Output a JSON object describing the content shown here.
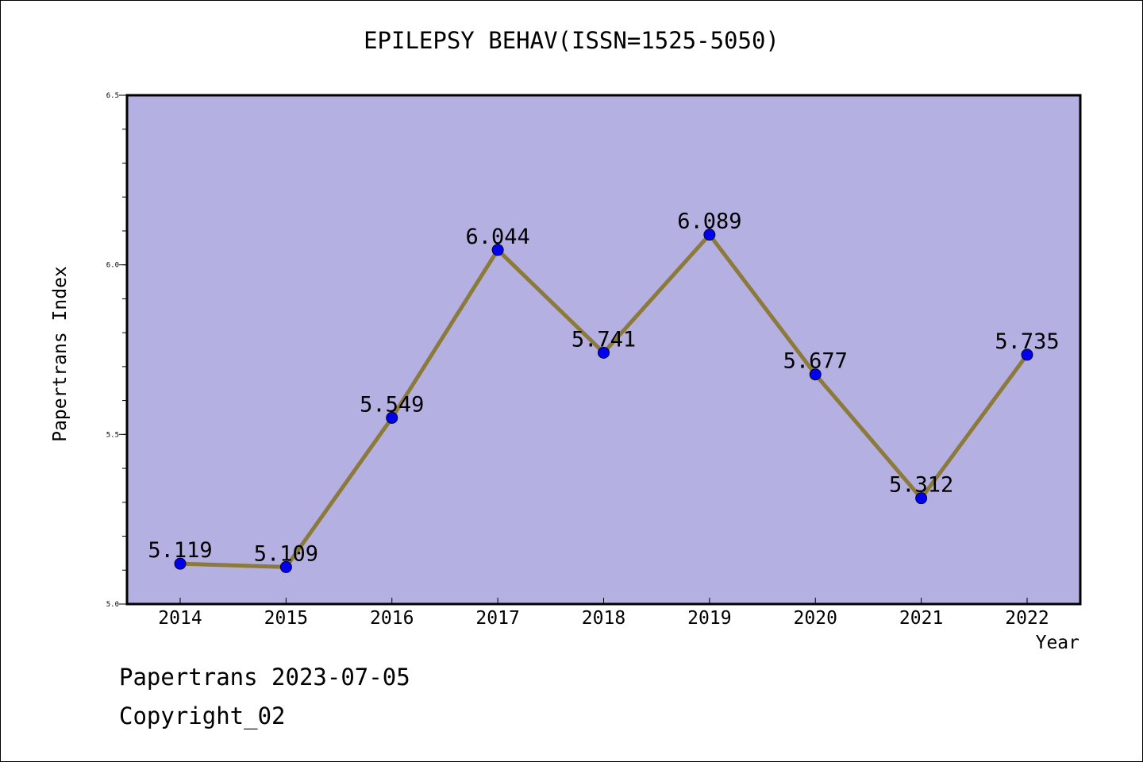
{
  "chart_data": {
    "type": "line",
    "title": "EPILEPSY BEHAV(ISSN=1525-5050)",
    "xlabel": "Year",
    "ylabel": "Papertrans Index",
    "categories": [
      "2014",
      "2015",
      "2016",
      "2017",
      "2018",
      "2019",
      "2020",
      "2021",
      "2022"
    ],
    "series": [
      {
        "values": [
          5.119,
          5.109,
          5.549,
          6.044,
          5.741,
          6.089,
          5.677,
          5.312,
          5.735
        ],
        "labels": [
          "5.119",
          "5.109",
          "5.549",
          "6.044",
          "5.741",
          "6.089",
          "5.677",
          "5.312",
          "5.735"
        ]
      }
    ],
    "ylim": [
      5.0,
      6.5
    ],
    "yticks": [
      "5.0",
      "5.5",
      "6.0",
      "6.5"
    ],
    "grid": false,
    "colors": {
      "plot_background": "#b5b0e2",
      "line": "#8b7a3a",
      "marker": "#0000ee"
    }
  },
  "footer": {
    "line1": "Papertrans 2023-07-05",
    "line2": "Copyright_02"
  }
}
